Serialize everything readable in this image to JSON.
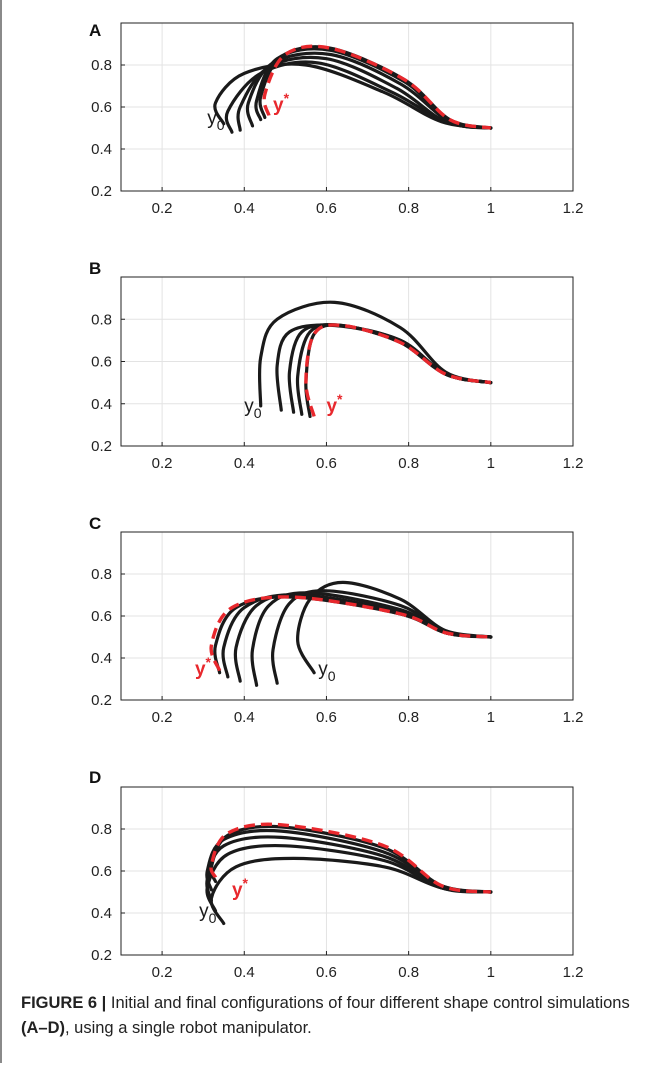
{
  "figure": {
    "caption": {
      "label": "FIGURE 6 |",
      "text_before": " Initial and final configurations of four different shape control simulations ",
      "panel_ref": "(A–D)",
      "text_after": ", using a single robot manipulator."
    },
    "colors": {
      "initial_curves": "#1a1a1a",
      "target_curve": "#e8282d",
      "grid": "#e3e3e3",
      "axis": "#222222"
    }
  },
  "chart_data": [
    {
      "panel": "A",
      "type": "line",
      "xlim": [
        0.1,
        1.2
      ],
      "ylim": [
        0.2,
        1.0
      ],
      "xticks": [
        "0.2",
        "0.4",
        "0.6",
        "0.8",
        "1",
        "1.2"
      ],
      "yticks": [
        "0.2",
        "0.4",
        "0.6",
        "0.8"
      ],
      "grid": true,
      "annotations": [
        {
          "label": "y",
          "sub": "0",
          "x": 0.31,
          "y": 0.52,
          "color": "#1a1a1a",
          "kind": "subscript"
        },
        {
          "label": "y",
          "sup": "*",
          "x": 0.47,
          "y": 0.58,
          "color": "#e8282d",
          "kind": "superscript"
        }
      ],
      "series": [
        {
          "style": "solid",
          "points": [
            [
              0.35,
              0.52
            ],
            [
              0.33,
              0.62
            ],
            [
              0.4,
              0.76
            ],
            [
              0.55,
              0.8
            ],
            [
              0.74,
              0.67
            ],
            [
              0.88,
              0.53
            ],
            [
              1.0,
              0.5
            ]
          ]
        },
        {
          "style": "solid",
          "points": [
            [
              0.37,
              0.48
            ],
            [
              0.36,
              0.58
            ],
            [
              0.44,
              0.76
            ],
            [
              0.58,
              0.81
            ],
            [
              0.76,
              0.67
            ],
            [
              0.89,
              0.53
            ],
            [
              1.0,
              0.5
            ]
          ]
        },
        {
          "style": "solid",
          "points": [
            [
              0.39,
              0.49
            ],
            [
              0.39,
              0.6
            ],
            [
              0.46,
              0.79
            ],
            [
              0.6,
              0.83
            ],
            [
              0.77,
              0.69
            ],
            [
              0.89,
              0.53
            ],
            [
              1.0,
              0.5
            ]
          ]
        },
        {
          "style": "solid",
          "points": [
            [
              0.42,
              0.51
            ],
            [
              0.41,
              0.62
            ],
            [
              0.47,
              0.81
            ],
            [
              0.61,
              0.85
            ],
            [
              0.78,
              0.71
            ],
            [
              0.9,
              0.53
            ],
            [
              1.0,
              0.5
            ]
          ]
        },
        {
          "style": "solid",
          "points": [
            [
              0.44,
              0.54
            ],
            [
              0.43,
              0.63
            ],
            [
              0.48,
              0.83
            ],
            [
              0.61,
              0.87
            ],
            [
              0.79,
              0.72
            ],
            [
              0.9,
              0.53
            ],
            [
              1.0,
              0.5
            ]
          ]
        },
        {
          "style": "solid",
          "points": [
            [
              0.45,
              0.55
            ],
            [
              0.44,
              0.65
            ],
            [
              0.49,
              0.84
            ],
            [
              0.61,
              0.88
            ],
            [
              0.79,
              0.73
            ],
            [
              0.9,
              0.54
            ],
            [
              1.0,
              0.5
            ]
          ]
        },
        {
          "style": "dashed",
          "points": [
            [
              0.46,
              0.56
            ],
            [
              0.45,
              0.66
            ],
            [
              0.5,
              0.85
            ],
            [
              0.61,
              0.88
            ],
            [
              0.79,
              0.73
            ],
            [
              0.9,
              0.54
            ],
            [
              1.0,
              0.5
            ]
          ]
        }
      ]
    },
    {
      "panel": "B",
      "type": "line",
      "xlim": [
        0.1,
        1.2
      ],
      "ylim": [
        0.2,
        1.0
      ],
      "xticks": [
        "0.2",
        "0.4",
        "0.6",
        "0.8",
        "1",
        "1.2"
      ],
      "yticks": [
        "0.2",
        "0.4",
        "0.6",
        "0.8"
      ],
      "grid": true,
      "annotations": [
        {
          "label": "y",
          "sub": "0",
          "x": 0.4,
          "y": 0.36,
          "color": "#1a1a1a",
          "kind": "subscript"
        },
        {
          "label": "y",
          "sup": "*",
          "x": 0.6,
          "y": 0.36,
          "color": "#e8282d",
          "kind": "superscript"
        }
      ],
      "series": [
        {
          "style": "solid",
          "points": [
            [
              0.44,
              0.39
            ],
            [
              0.44,
              0.62
            ],
            [
              0.48,
              0.8
            ],
            [
              0.62,
              0.88
            ],
            [
              0.78,
              0.76
            ],
            [
              0.89,
              0.55
            ],
            [
              1.0,
              0.5
            ]
          ]
        },
        {
          "style": "solid",
          "points": [
            [
              0.49,
              0.37
            ],
            [
              0.48,
              0.58
            ],
            [
              0.51,
              0.74
            ],
            [
              0.62,
              0.77
            ],
            [
              0.78,
              0.7
            ],
            [
              0.89,
              0.54
            ],
            [
              1.0,
              0.5
            ]
          ]
        },
        {
          "style": "solid",
          "points": [
            [
              0.52,
              0.36
            ],
            [
              0.51,
              0.55
            ],
            [
              0.54,
              0.74
            ],
            [
              0.63,
              0.77
            ],
            [
              0.78,
              0.7
            ],
            [
              0.89,
              0.54
            ],
            [
              1.0,
              0.5
            ]
          ]
        },
        {
          "style": "solid",
          "points": [
            [
              0.54,
              0.35
            ],
            [
              0.53,
              0.53
            ],
            [
              0.56,
              0.74
            ],
            [
              0.64,
              0.77
            ],
            [
              0.78,
              0.69
            ],
            [
              0.89,
              0.54
            ],
            [
              1.0,
              0.5
            ]
          ]
        },
        {
          "style": "solid",
          "points": [
            [
              0.56,
              0.34
            ],
            [
              0.55,
              0.5
            ],
            [
              0.57,
              0.73
            ],
            [
              0.64,
              0.77
            ],
            [
              0.78,
              0.69
            ],
            [
              0.89,
              0.54
            ],
            [
              1.0,
              0.5
            ]
          ]
        },
        {
          "style": "dashed",
          "points": [
            [
              0.57,
              0.34
            ],
            [
              0.55,
              0.5
            ],
            [
              0.57,
              0.73
            ],
            [
              0.64,
              0.77
            ],
            [
              0.78,
              0.69
            ],
            [
              0.89,
              0.54
            ],
            [
              1.0,
              0.5
            ]
          ]
        }
      ]
    },
    {
      "panel": "C",
      "type": "line",
      "xlim": [
        0.1,
        1.2
      ],
      "ylim": [
        0.2,
        1.0
      ],
      "xticks": [
        "0.2",
        "0.4",
        "0.6",
        "0.8",
        "1",
        "1.2"
      ],
      "yticks": [
        "0.2",
        "0.4",
        "0.6",
        "0.8"
      ],
      "grid": true,
      "annotations": [
        {
          "label": "y",
          "sub": "0",
          "x": 0.58,
          "y": 0.32,
          "color": "#1a1a1a",
          "kind": "subscript"
        },
        {
          "label": "y",
          "sup": "*",
          "x": 0.28,
          "y": 0.32,
          "color": "#e8282d",
          "kind": "superscript"
        }
      ],
      "series": [
        {
          "style": "solid",
          "points": [
            [
              0.57,
              0.33
            ],
            [
              0.53,
              0.48
            ],
            [
              0.56,
              0.68
            ],
            [
              0.64,
              0.76
            ],
            [
              0.78,
              0.68
            ],
            [
              0.89,
              0.53
            ],
            [
              1.0,
              0.5
            ]
          ]
        },
        {
          "style": "solid",
          "points": [
            [
              0.48,
              0.28
            ],
            [
              0.47,
              0.44
            ],
            [
              0.51,
              0.66
            ],
            [
              0.6,
              0.72
            ],
            [
              0.78,
              0.65
            ],
            [
              0.89,
              0.53
            ],
            [
              1.0,
              0.5
            ]
          ]
        },
        {
          "style": "solid",
          "points": [
            [
              0.43,
              0.27
            ],
            [
              0.42,
              0.44
            ],
            [
              0.46,
              0.65
            ],
            [
              0.56,
              0.71
            ],
            [
              0.78,
              0.63
            ],
            [
              0.89,
              0.52
            ],
            [
              1.0,
              0.5
            ]
          ]
        },
        {
          "style": "solid",
          "points": [
            [
              0.39,
              0.29
            ],
            [
              0.38,
              0.45
            ],
            [
              0.43,
              0.65
            ],
            [
              0.54,
              0.7
            ],
            [
              0.78,
              0.62
            ],
            [
              0.89,
              0.52
            ],
            [
              1.0,
              0.5
            ]
          ]
        },
        {
          "style": "solid",
          "points": [
            [
              0.36,
              0.31
            ],
            [
              0.35,
              0.45
            ],
            [
              0.4,
              0.64
            ],
            [
              0.53,
              0.7
            ],
            [
              0.78,
              0.61
            ],
            [
              0.89,
              0.52
            ],
            [
              1.0,
              0.5
            ]
          ]
        },
        {
          "style": "solid",
          "points": [
            [
              0.34,
              0.33
            ],
            [
              0.33,
              0.46
            ],
            [
              0.38,
              0.64
            ],
            [
              0.52,
              0.69
            ],
            [
              0.78,
              0.61
            ],
            [
              0.89,
              0.52
            ],
            [
              1.0,
              0.5
            ]
          ]
        },
        {
          "style": "dashed",
          "points": [
            [
              0.34,
              0.34
            ],
            [
              0.32,
              0.46
            ],
            [
              0.37,
              0.64
            ],
            [
              0.52,
              0.69
            ],
            [
              0.78,
              0.61
            ],
            [
              0.89,
              0.52
            ],
            [
              1.0,
              0.5
            ]
          ]
        }
      ]
    },
    {
      "panel": "D",
      "type": "line",
      "xlim": [
        0.1,
        1.2
      ],
      "ylim": [
        0.2,
        1.0
      ],
      "xticks": [
        "0.2",
        "0.4",
        "0.6",
        "0.8",
        "1",
        "1.2"
      ],
      "yticks": [
        "0.2",
        "0.4",
        "0.6",
        "0.8"
      ],
      "grid": true,
      "annotations": [
        {
          "label": "y",
          "sub": "0",
          "x": 0.29,
          "y": 0.38,
          "color": "#1a1a1a",
          "kind": "subscript"
        },
        {
          "label": "y",
          "sup": "*",
          "x": 0.37,
          "y": 0.48,
          "color": "#e8282d",
          "kind": "superscript"
        }
      ],
      "series": [
        {
          "style": "solid",
          "points": [
            [
              0.35,
              0.35
            ],
            [
              0.32,
              0.47
            ],
            [
              0.38,
              0.62
            ],
            [
              0.52,
              0.66
            ],
            [
              0.74,
              0.62
            ],
            [
              0.88,
              0.52
            ],
            [
              1.0,
              0.5
            ]
          ]
        },
        {
          "style": "solid",
          "points": [
            [
              0.33,
              0.41
            ],
            [
              0.31,
              0.52
            ],
            [
              0.36,
              0.68
            ],
            [
              0.5,
              0.72
            ],
            [
              0.74,
              0.65
            ],
            [
              0.88,
              0.52
            ],
            [
              1.0,
              0.5
            ]
          ]
        },
        {
          "style": "solid",
          "points": [
            [
              0.32,
              0.46
            ],
            [
              0.31,
              0.56
            ],
            [
              0.35,
              0.72
            ],
            [
              0.49,
              0.76
            ],
            [
              0.74,
              0.67
            ],
            [
              0.88,
              0.52
            ],
            [
              1.0,
              0.5
            ]
          ]
        },
        {
          "style": "solid",
          "points": [
            [
              0.32,
              0.51
            ],
            [
              0.31,
              0.6
            ],
            [
              0.35,
              0.75
            ],
            [
              0.49,
              0.79
            ],
            [
              0.74,
              0.69
            ],
            [
              0.88,
              0.53
            ],
            [
              1.0,
              0.5
            ]
          ]
        },
        {
          "style": "solid",
          "points": [
            [
              0.33,
              0.55
            ],
            [
              0.32,
              0.62
            ],
            [
              0.36,
              0.77
            ],
            [
              0.49,
              0.81
            ],
            [
              0.74,
              0.71
            ],
            [
              0.88,
              0.53
            ],
            [
              1.0,
              0.5
            ]
          ]
        },
        {
          "style": "dashed",
          "points": [
            [
              0.33,
              0.57
            ],
            [
              0.32,
              0.63
            ],
            [
              0.36,
              0.78
            ],
            [
              0.49,
              0.82
            ],
            [
              0.74,
              0.72
            ],
            [
              0.88,
              0.53
            ],
            [
              1.0,
              0.5
            ]
          ]
        }
      ]
    }
  ]
}
